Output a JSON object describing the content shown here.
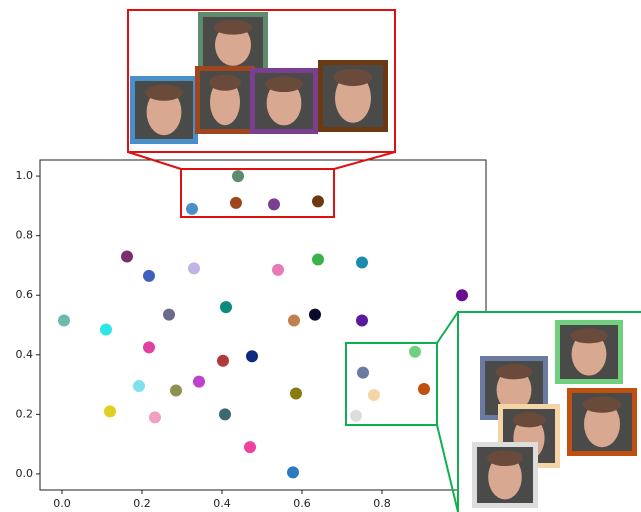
{
  "chart_data": {
    "type": "scatter",
    "x": [
      0.44,
      0.325,
      0.435,
      0.53,
      0.64,
      0.1625,
      0.2175,
      0.33,
      0.54,
      0.64,
      0.75,
      1.0,
      0.005,
      0.11,
      0.2675,
      0.41,
      0.58,
      0.6325,
      0.75,
      0.2175,
      0.4025,
      0.475,
      0.1925,
      0.285,
      0.3425,
      0.7525,
      0.8825,
      0.905,
      0.78,
      0.735,
      0.12,
      0.2325,
      0.4075,
      0.585,
      0.47,
      0.5775
    ],
    "values": [
      1.0,
      0.89,
      0.91,
      0.905,
      0.915,
      0.73,
      0.665,
      0.69,
      0.685,
      0.72,
      0.71,
      0.6,
      0.515,
      0.485,
      0.535,
      0.56,
      0.515,
      0.535,
      0.515,
      0.425,
      0.38,
      0.395,
      0.295,
      0.28,
      0.31,
      0.34,
      0.41,
      0.285,
      0.265,
      0.195,
      0.21,
      0.19,
      0.2,
      0.27,
      0.09,
      0.005
    ],
    "colors": [
      "#5f8a6e",
      "#4a90c8",
      "#a0461e",
      "#7a3f8f",
      "#6b3a12",
      "#7b2e6e",
      "#3f5fbf",
      "#c0b3e6",
      "#e87ab8",
      "#3cb34a",
      "#1a8cb0",
      "#6a0d91",
      "#6fb8b0",
      "#2ee6e6",
      "#6a6a8a",
      "#0d8a80",
      "#c08050",
      "#0a0a2a",
      "#5b1a9e",
      "#e040a0",
      "#b03a3a",
      "#0d2a80",
      "#80e0f0",
      "#909050",
      "#c040d0",
      "#6a7aa0",
      "#70d080",
      "#c05010",
      "#f5d5a5",
      "#dddddd",
      "#e0d020",
      "#f0a0c0",
      "#3a6a70",
      "#8a7a10",
      "#f040a0",
      "#2a7ac0"
    ],
    "xlim": [
      -0.055,
      1.06
    ],
    "ylim": [
      -0.054,
      1.054
    ],
    "xticks": [
      {
        "value": 0,
        "label": "0.0"
      },
      {
        "value": 0.2,
        "label": "0.2"
      },
      {
        "value": 0.4,
        "label": "0.4"
      },
      {
        "value": 0.6,
        "label": "0.6"
      },
      {
        "value": 0.8,
        "label": "0.8"
      }
    ],
    "yticks": [
      {
        "value": 0,
        "label": "0.0"
      },
      {
        "value": 0.2,
        "label": "0.2"
      },
      {
        "value": 0.4,
        "label": "0.4"
      },
      {
        "value": 0.6,
        "label": "0.6"
      },
      {
        "value": 0.8,
        "label": "0.8"
      },
      {
        "value": 1.0,
        "label": "1.0"
      }
    ]
  }
}
